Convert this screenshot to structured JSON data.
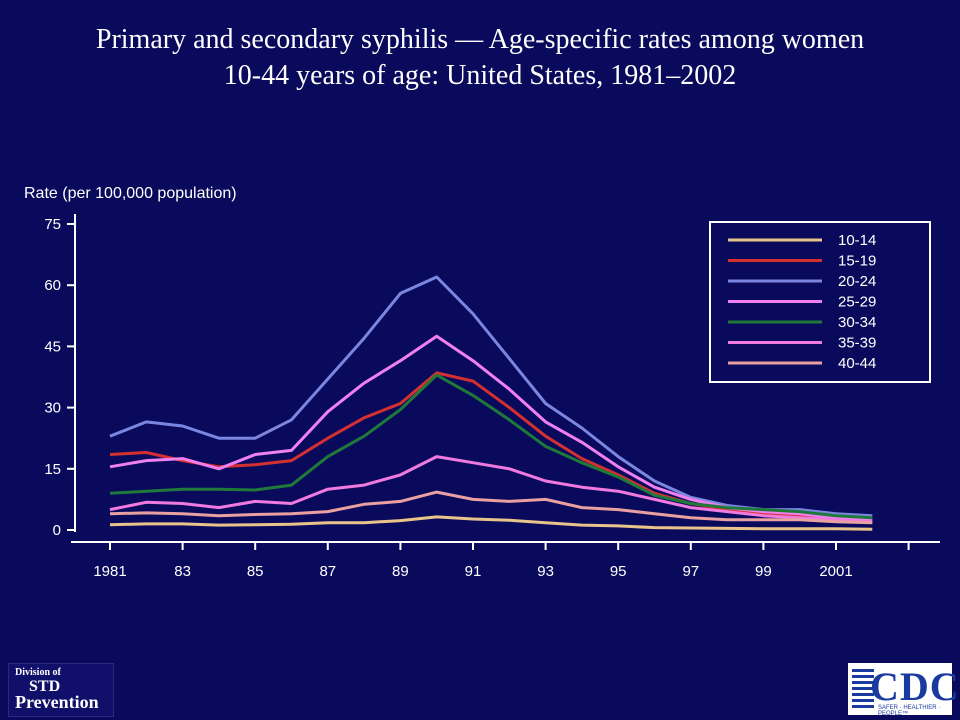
{
  "title_line1": "Primary and secondary syphilis — Age-specific rates among women",
  "title_line2": "10-44 years of age: United States, 1981–2002",
  "logos": {
    "std_line1": "Division of",
    "std_line2": "STD",
    "std_line3": "Prevention",
    "cdc_text": "CDC",
    "cdc_tagline": "SAFER · HEALTHIER · PEOPLE™"
  },
  "chart_data": {
    "type": "line",
    "ylabel": "Rate (per 100,000 population)",
    "xlabel": "",
    "ylim": [
      0,
      75
    ],
    "yticks": [
      0,
      15,
      30,
      45,
      60,
      75
    ],
    "x": [
      1981,
      1982,
      1983,
      1984,
      1985,
      1986,
      1987,
      1988,
      1989,
      1990,
      1991,
      1992,
      1993,
      1994,
      1995,
      1996,
      1997,
      1998,
      1999,
      2000,
      2001,
      2002
    ],
    "xtick_labels": [
      "1981",
      "83",
      "85",
      "87",
      "89",
      "91",
      "93",
      "95",
      "97",
      "99",
      "2001"
    ],
    "xtick_values": [
      1981,
      1983,
      1985,
      1987,
      1989,
      1991,
      1993,
      1995,
      1997,
      1999,
      2001
    ],
    "grid": false,
    "legend_position": "top-right",
    "series": [
      {
        "name": "10-14",
        "color": "#e8c48a",
        "values": [
          1.3,
          1.5,
          1.5,
          1.2,
          1.3,
          1.4,
          1.8,
          1.8,
          2.3,
          3.2,
          2.7,
          2.4,
          1.8,
          1.2,
          1.0,
          0.6,
          0.5,
          0.4,
          0.3,
          0.3,
          0.3,
          0.2
        ]
      },
      {
        "name": "15-19",
        "color": "#d43030",
        "values": [
          18.5,
          19.0,
          17.0,
          15.5,
          16.0,
          17.0,
          22.5,
          27.5,
          31.0,
          38.5,
          36.5,
          30.0,
          23.0,
          17.5,
          13.5,
          9.0,
          6.5,
          5.0,
          4.0,
          3.5,
          2.5,
          2.0
        ]
      },
      {
        "name": "20-24",
        "color": "#7a86e0",
        "values": [
          23.0,
          26.5,
          25.5,
          22.5,
          22.5,
          27.0,
          37.0,
          47.0,
          58.0,
          62.0,
          53.0,
          42.0,
          31.0,
          25.0,
          18.0,
          12.0,
          8.0,
          6.0,
          5.0,
          5.0,
          4.0,
          3.5
        ]
      },
      {
        "name": "25-29",
        "color": "#f080f0",
        "values": [
          15.5,
          17.0,
          17.5,
          15.0,
          18.5,
          19.5,
          29.0,
          36.0,
          41.5,
          47.5,
          41.5,
          34.5,
          26.5,
          21.5,
          15.5,
          10.5,
          7.5,
          5.5,
          4.5,
          4.0,
          3.0,
          2.5
        ]
      },
      {
        "name": "30-34",
        "color": "#1f7a3a",
        "values": [
          9.0,
          9.5,
          10.0,
          10.0,
          9.8,
          11.0,
          18.0,
          23.0,
          29.5,
          38.0,
          33.0,
          27.0,
          20.5,
          16.5,
          13.0,
          8.5,
          6.5,
          5.5,
          5.0,
          4.5,
          3.5,
          3.0
        ]
      },
      {
        "name": "35-39",
        "color": "#f07ae0",
        "values": [
          5.0,
          6.8,
          6.5,
          5.5,
          7.0,
          6.5,
          10.0,
          11.0,
          13.5,
          18.0,
          16.5,
          15.0,
          12.0,
          10.5,
          9.5,
          7.5,
          5.5,
          4.5,
          3.5,
          3.0,
          2.5,
          2.0
        ]
      },
      {
        "name": "40-44",
        "color": "#e8a0a0",
        "values": [
          4.0,
          4.2,
          4.0,
          3.5,
          3.8,
          4.0,
          4.5,
          6.3,
          7.0,
          9.3,
          7.5,
          7.0,
          7.5,
          5.5,
          5.0,
          4.0,
          3.0,
          2.5,
          2.5,
          2.5,
          2.0,
          1.8
        ]
      }
    ]
  }
}
